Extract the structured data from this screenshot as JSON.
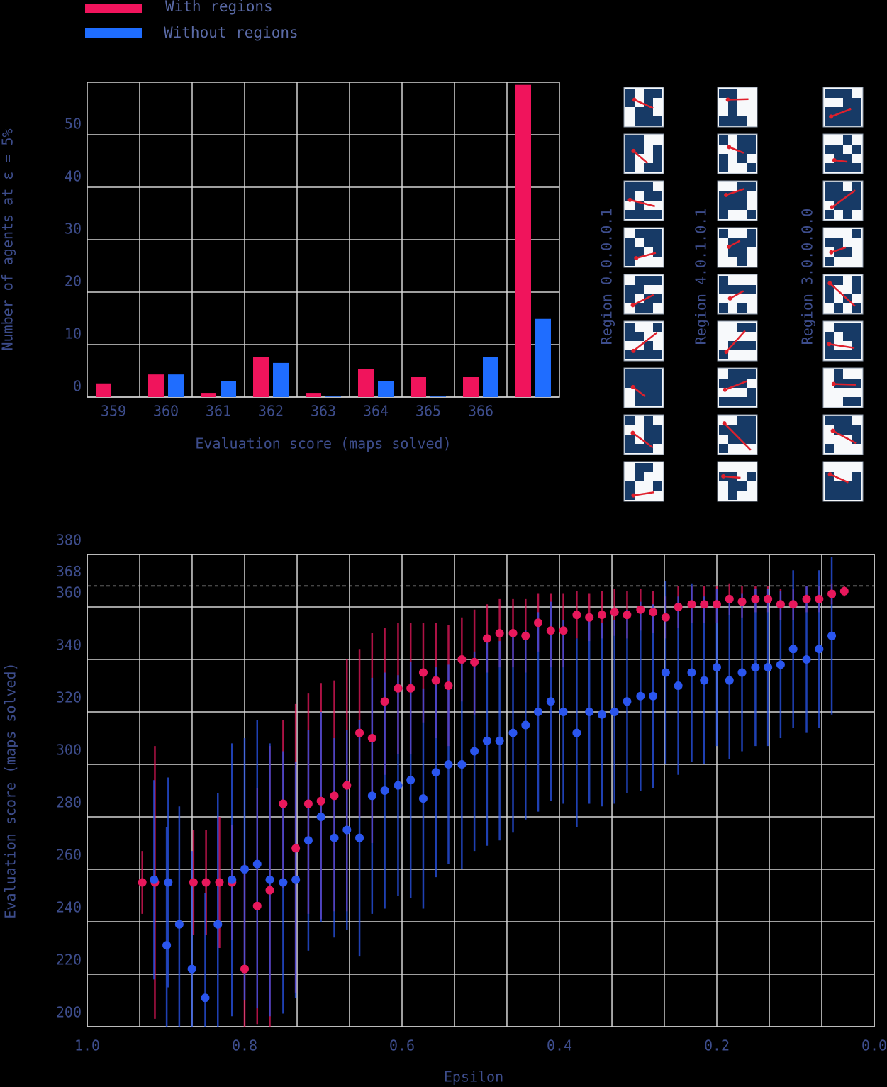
{
  "chart_data": [
    {
      "type": "bar",
      "ylabel": "Number of agents at ε = 5%",
      "xlabel": "Evaluation score (maps solved)",
      "categories": [
        "359",
        "360",
        "361",
        "362",
        "363",
        "364",
        "365",
        "366",
        null
      ],
      "series": [
        {
          "name": "With regions",
          "color": "#f0145c",
          "values": [
            2.6,
            4.3,
            0.8,
            7.6,
            0.8,
            5.4,
            3.8,
            3.8,
            59.5
          ]
        },
        {
          "name": "Without regions",
          "color": "#1f6dff",
          "values": [
            0,
            4.3,
            3,
            6.5,
            0.1,
            3,
            0.1,
            7.6,
            14.9
          ]
        }
      ],
      "ylim": [
        0,
        60
      ],
      "yticks": [
        0,
        10,
        20,
        30,
        40,
        50
      ],
      "grid": true
    },
    {
      "type": "scatter",
      "ylabel": "Evaluation score (maps solved)",
      "xlabel": "Epsilon",
      "series": [
        {
          "name": "With regions",
          "color": "#e8185c",
          "x": [
            0.93,
            0.914,
            0.865,
            0.849,
            0.832,
            0.816,
            0.8,
            0.784,
            0.768,
            0.751,
            0.735,
            0.719,
            0.703,
            0.686,
            0.67,
            0.654,
            0.638,
            0.622,
            0.605,
            0.589,
            0.573,
            0.557,
            0.541,
            0.524,
            0.508,
            0.492,
            0.476,
            0.459,
            0.443,
            0.427,
            0.411,
            0.395,
            0.378,
            0.362,
            0.346,
            0.33,
            0.314,
            0.297,
            0.281,
            0.265,
            0.249,
            0.232,
            0.216,
            0.2,
            0.184,
            0.168,
            0.151,
            0.135,
            0.119,
            0.103,
            0.086,
            0.07,
            0.054,
            0.038
          ],
          "values": [
            255,
            255,
            255,
            255,
            255,
            255,
            222,
            246,
            252,
            285,
            268,
            285,
            286,
            288,
            292,
            312,
            310,
            324,
            329,
            329,
            335,
            332,
            330,
            340,
            339,
            348,
            350,
            350,
            349,
            354,
            351,
            351,
            357,
            356,
            357,
            358,
            357,
            359,
            358,
            356,
            360,
            361,
            361,
            361,
            363,
            362,
            363,
            363,
            361,
            361,
            363,
            363,
            365,
            366
          ],
          "errors": [
            12,
            52,
            20,
            20,
            25,
            22,
            40,
            45,
            55,
            32,
            55,
            42,
            45,
            44,
            48,
            32,
            40,
            28,
            25,
            25,
            19,
            22,
            23,
            16,
            20,
            13,
            13,
            13,
            14,
            11,
            14,
            14,
            9,
            9,
            9,
            9,
            9,
            8,
            8,
            8,
            8,
            7,
            7,
            7,
            6,
            6,
            5,
            5,
            6,
            6,
            5,
            5,
            4,
            2
          ]
        },
        {
          "name": "Without regions",
          "color": "#2a55ee",
          "x": [
            0.915,
            0.899,
            0.897,
            0.883,
            0.867,
            0.85,
            0.834,
            0.816,
            0.8,
            0.784,
            0.768,
            0.751,
            0.735,
            0.719,
            0.703,
            0.686,
            0.67,
            0.654,
            0.638,
            0.622,
            0.605,
            0.589,
            0.573,
            0.557,
            0.541,
            0.524,
            0.508,
            0.492,
            0.476,
            0.459,
            0.443,
            0.427,
            0.411,
            0.395,
            0.378,
            0.362,
            0.346,
            0.33,
            0.314,
            0.297,
            0.281,
            0.265,
            0.249,
            0.232,
            0.216,
            0.2,
            0.184,
            0.168,
            0.151,
            0.135,
            0.119,
            0.103,
            0.086,
            0.07,
            0.054
          ],
          "values": [
            256,
            231,
            255,
            239,
            222,
            211,
            239,
            256,
            260,
            262,
            256,
            255,
            256,
            271,
            280,
            272,
            275,
            272,
            288,
            290,
            292,
            294,
            287,
            297,
            300,
            300,
            305,
            309,
            309,
            312,
            315,
            320,
            324,
            320,
            312,
            320,
            319,
            320,
            324,
            326,
            326,
            335,
            330,
            335,
            332,
            337,
            332,
            335,
            337,
            337,
            338,
            344,
            340,
            344,
            349
          ],
          "errors": [
            38,
            45,
            40,
            45,
            45,
            40,
            50,
            52,
            50,
            55,
            52,
            50,
            45,
            42,
            40,
            38,
            38,
            45,
            45,
            45,
            42,
            45,
            42,
            40,
            38,
            40,
            38,
            40,
            38,
            38,
            36,
            38,
            38,
            35,
            36,
            35,
            35,
            35,
            35,
            36,
            35,
            35,
            34,
            34,
            32,
            30,
            30,
            30,
            30,
            30,
            28,
            30,
            28,
            30,
            30
          ]
        }
      ],
      "xlim": [
        1,
        0
      ],
      "xticks": [
        {
          "value": 1,
          "label": "1.0"
        },
        0.8,
        0.6,
        0.4,
        0.2,
        {
          "value": 0,
          "label": "0.0"
        }
      ],
      "xgrid": [
        1,
        0.9333,
        0.8667,
        0.8,
        0.7333,
        0.6667,
        0.6,
        0.5333,
        0.4667,
        0.4,
        0.3333,
        0.2667,
        0.2,
        0.1333,
        0.0667,
        0
      ],
      "ylim": [
        200,
        380
      ],
      "yticks": [
        200,
        220,
        240,
        260,
        280,
        300,
        320,
        340,
        360,
        368,
        380
      ],
      "reference_line": {
        "y": 368,
        "dash": true
      },
      "grid": true
    }
  ],
  "regions": [
    "Region 0.0.0.0.1",
    "Region 4.0.1.0.1",
    "Region 3.0.0.0.0"
  ]
}
